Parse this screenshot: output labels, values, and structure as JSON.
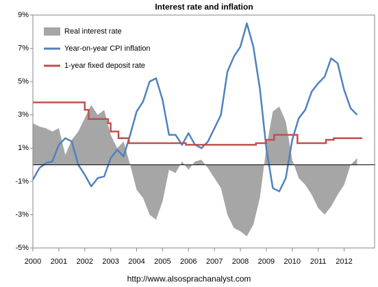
{
  "chart_data": {
    "type": "line",
    "title": "Interest rate and inflation",
    "source": "http://www.alsosprachanalyst.com",
    "x": [
      2000,
      2000.25,
      2000.5,
      2000.75,
      2001,
      2001.25,
      2001.5,
      2001.75,
      2002,
      2002.25,
      2002.5,
      2002.75,
      2003,
      2003.25,
      2003.5,
      2003.75,
      2004,
      2004.25,
      2004.5,
      2004.75,
      2005,
      2005.25,
      2005.5,
      2005.75,
      2006,
      2006.25,
      2006.5,
      2006.75,
      2007,
      2007.25,
      2007.5,
      2007.75,
      2008,
      2008.25,
      2008.5,
      2008.75,
      2009,
      2009.25,
      2009.5,
      2009.75,
      2010,
      2010.25,
      2010.5,
      2010.75,
      2011,
      2011.25,
      2011.5,
      2011.75,
      2012,
      2012.25,
      2012.5
    ],
    "series": [
      {
        "name": "Real interest rate",
        "kind": "area",
        "color": "#a6a6a6",
        "values": [
          2.5,
          2.3,
          2.2,
          2.0,
          2.2,
          0.6,
          1.5,
          2.0,
          2.8,
          3.6,
          3.0,
          3.3,
          1.8,
          1.0,
          1.4,
          0.0,
          -1.5,
          -2.0,
          -3.0,
          -3.3,
          -2.2,
          -0.3,
          -0.5,
          0.2,
          -0.3,
          0.2,
          0.3,
          -0.2,
          -0.8,
          -1.4,
          -3.0,
          -3.8,
          -4.0,
          -4.3,
          -3.6,
          -2.0,
          1.0,
          3.2,
          3.5,
          2.6,
          0.3,
          -0.8,
          -1.2,
          -1.8,
          -2.6,
          -3.0,
          -2.5,
          -1.8,
          -1.2,
          0.0,
          0.4
        ]
      },
      {
        "name": "Year-on-year CPI inflation",
        "kind": "line",
        "color": "#4f81bd",
        "values": [
          -0.9,
          -0.2,
          0.1,
          0.2,
          1.2,
          1.6,
          1.4,
          0.0,
          -0.6,
          -1.3,
          -0.8,
          -0.7,
          0.4,
          0.9,
          0.5,
          1.8,
          3.2,
          3.8,
          5.0,
          5.2,
          3.9,
          1.8,
          1.8,
          1.2,
          1.9,
          1.2,
          1.0,
          1.4,
          2.2,
          3.0,
          5.6,
          6.5,
          7.1,
          8.5,
          7.1,
          4.6,
          1.0,
          -1.4,
          -1.6,
          -0.8,
          1.5,
          2.8,
          3.3,
          4.4,
          4.9,
          5.3,
          6.4,
          6.1,
          4.5,
          3.4,
          3.0
        ]
      },
      {
        "name": "1-year fixed deposit rate",
        "kind": "step",
        "color": "#c0504d",
        "x": [
          2000,
          2002,
          2002.15,
          2002.9,
          2003,
          2003.3,
          2003.7,
          2005.9,
          2008.6,
          2009,
          2009.3,
          2010.2,
          2011.3,
          2011.6,
          2012.7
        ],
        "values": [
          3.75,
          3.3,
          2.75,
          2.5,
          2.0,
          1.6,
          1.3,
          1.2,
          1.3,
          1.5,
          1.8,
          1.3,
          1.5,
          1.6,
          1.6
        ]
      }
    ],
    "xlim": [
      2000,
      2013.2
    ],
    "xticks": [
      2000,
      2001,
      2002,
      2003,
      2004,
      2005,
      2006,
      2007,
      2008,
      2009,
      2010,
      2011,
      2012
    ],
    "ylim": [
      -5,
      9
    ],
    "yticks": [
      {
        "value": -5,
        "label": "-5%"
      },
      {
        "value": -3,
        "label": "-3%"
      },
      {
        "value": -1,
        "label": "-1%"
      },
      {
        "value": 1,
        "label": "1%"
      },
      {
        "value": 3,
        "label": "3%"
      },
      {
        "value": 5,
        "label": "5%"
      },
      {
        "value": 7,
        "label": "7%"
      },
      {
        "value": 9,
        "label": "9%"
      }
    ],
    "grid": false,
    "legend": "top-left"
  }
}
